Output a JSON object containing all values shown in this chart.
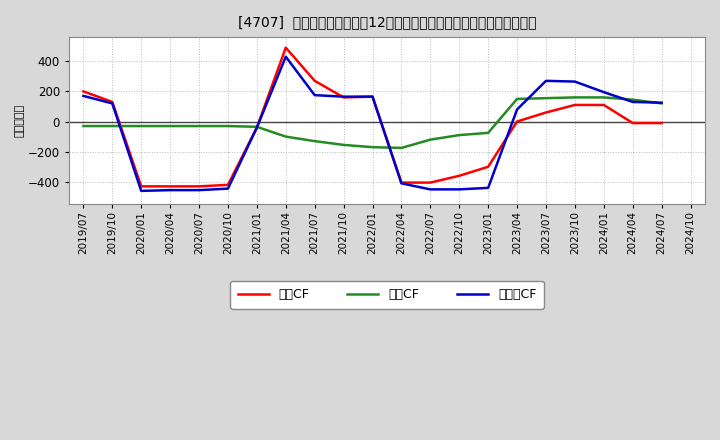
{
  "title": "[4707]  キャッシュフローの12か月移動合計の対前年同期増減額の推移",
  "ylabel": "（百万円）",
  "x_labels": [
    "2019/07",
    "2019/10",
    "2020/01",
    "2020/04",
    "2020/07",
    "2020/10",
    "2021/01",
    "2021/04",
    "2021/07",
    "2021/10",
    "2022/01",
    "2022/04",
    "2022/07",
    "2022/10",
    "2023/01",
    "2023/04",
    "2023/07",
    "2023/10",
    "2024/01",
    "2024/04",
    "2024/07",
    "2024/10"
  ],
  "operating_cf": [
    200,
    130,
    -430,
    -430,
    -430,
    -420,
    -40,
    490,
    270,
    160,
    165,
    -405,
    -405,
    -360,
    -300,
    0,
    60,
    110,
    110,
    -10,
    -10,
    null
  ],
  "investing_cf": [
    -30,
    -30,
    -30,
    -30,
    -30,
    -30,
    -35,
    -100,
    -130,
    -155,
    -170,
    -175,
    -120,
    -90,
    -75,
    150,
    155,
    160,
    160,
    145,
    120,
    null
  ],
  "free_cf": [
    170,
    120,
    -460,
    -455,
    -455,
    -445,
    -40,
    430,
    175,
    165,
    165,
    -410,
    -450,
    -450,
    -440,
    80,
    270,
    265,
    195,
    130,
    125,
    null
  ],
  "ylim": [
    -550,
    560
  ],
  "yticks": [
    -400,
    -200,
    0,
    200,
    400
  ],
  "bg_color": "#d8d8d8",
  "plot_bg_color": "#ffffff",
  "grid_color": "#aaaaaa",
  "operating_color": "#ff0000",
  "investing_color": "#228B22",
  "free_color": "#0000cc",
  "legend_labels": [
    "営業CF",
    "投資CF",
    "フリーCF"
  ]
}
